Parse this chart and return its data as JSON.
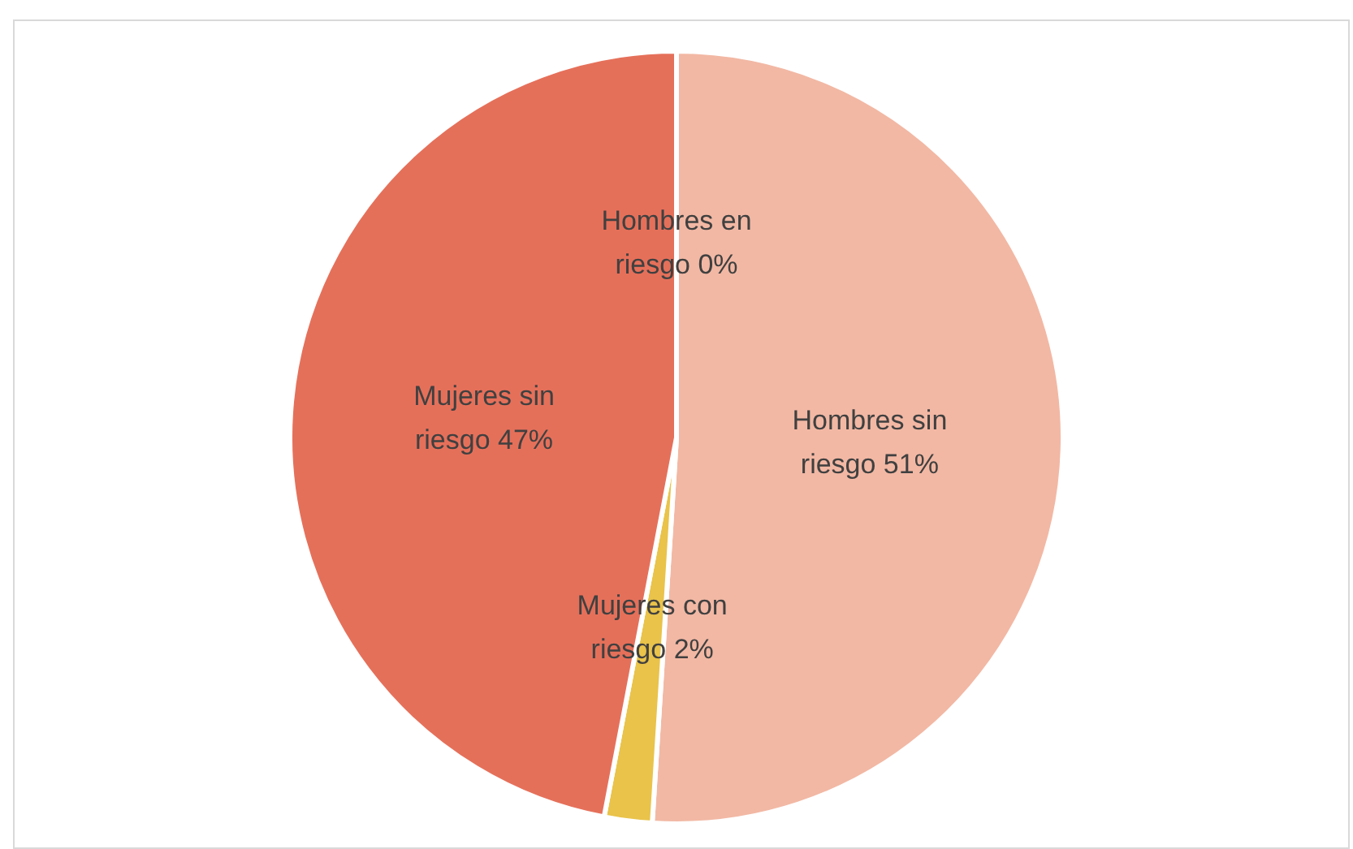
{
  "chart_data": {
    "type": "pie",
    "categories": [
      "Hombres en riesgo",
      "Hombres sin riesgo",
      "Mujeres con riesgo",
      "Mujeres sin riesgo"
    ],
    "values": [
      0,
      51,
      2,
      47
    ],
    "value_labels": [
      "0%",
      "51%",
      "2%",
      "47%"
    ],
    "colors": [
      "#c0504d",
      "#f2b8a4",
      "#e9c34a",
      "#e5705a"
    ],
    "legend": false
  }
}
